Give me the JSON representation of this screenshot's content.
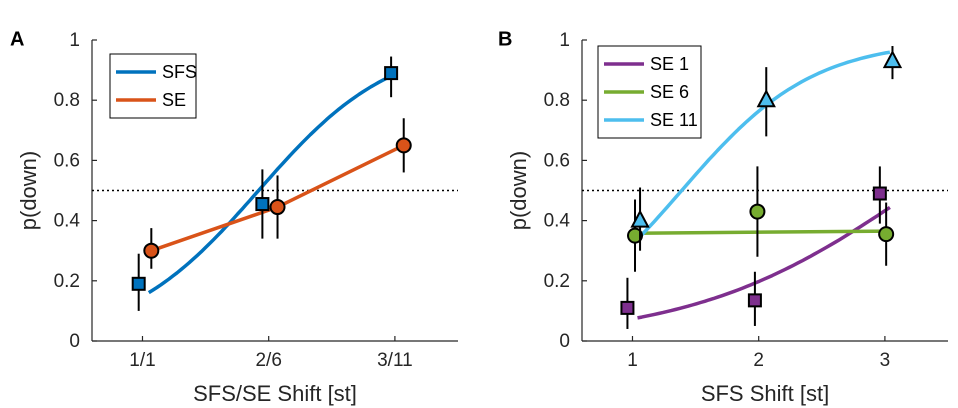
{
  "chart_data": [
    {
      "panel": "A",
      "type": "line",
      "xlabel": "SFS/SE Shift [st]",
      "ylabel": "p(down)",
      "categories": [
        "1/1",
        "2/6",
        "3/11"
      ],
      "x_ticks": [
        1,
        2,
        3
      ],
      "xlim": [
        0.6,
        3.5
      ],
      "ylim": [
        0,
        1
      ],
      "y_ticks": [
        0,
        0.2,
        0.4,
        0.6,
        0.8,
        1
      ],
      "y_tick_labels": [
        "0",
        "0.2",
        "0.4",
        "0.6",
        "0.8",
        "1"
      ],
      "reference_line": 0.5,
      "legend": "top-left",
      "series": [
        {
          "name": "SFS",
          "color": "#0072BD",
          "marker": "square",
          "x": [
            0.97,
            1.95,
            2.97
          ],
          "y": [
            0.19,
            0.455,
            0.89
          ],
          "err_low": [
            0.1,
            0.34,
            0.81
          ],
          "err_high": [
            0.29,
            0.57,
            0.945
          ],
          "fit": "logistic",
          "fit_x_range": [
            1.05,
            2.97
          ],
          "fit_params": {
            "ymin": 0.0,
            "ymax": 1.0,
            "x0": 1.92,
            "k": 1.9
          }
        },
        {
          "name": "SE",
          "color": "#D95319",
          "marker": "circle",
          "x": [
            1.07,
            2.07,
            3.07
          ],
          "y": [
            0.3,
            0.445,
            0.65
          ],
          "err_low": [
            0.24,
            0.34,
            0.56
          ],
          "err_high": [
            0.375,
            0.55,
            0.74
          ],
          "fit": "polyline"
        }
      ]
    },
    {
      "panel": "B",
      "type": "line",
      "xlabel": "SFS Shift [st]",
      "ylabel": "p(down)",
      "categories": [
        "1",
        "2",
        "3"
      ],
      "x_ticks": [
        1,
        2,
        3
      ],
      "xlim": [
        0.6,
        3.5
      ],
      "ylim": [
        0,
        1
      ],
      "y_ticks": [
        0,
        0.2,
        0.4,
        0.6,
        0.8,
        1
      ],
      "y_tick_labels": [
        "0",
        "0.2",
        "0.4",
        "0.6",
        "0.8",
        "1"
      ],
      "reference_line": 0.5,
      "legend": "top-left",
      "series": [
        {
          "name": "SE 1",
          "color": "#7E2F8E",
          "marker": "square",
          "x": [
            0.96,
            1.97,
            2.96
          ],
          "y": [
            0.11,
            0.135,
            0.49
          ],
          "err_low": [
            0.04,
            0.05,
            0.39
          ],
          "err_high": [
            0.21,
            0.23,
            0.58
          ],
          "fit": "logistic",
          "fit_x_range": [
            1.04,
            3.04
          ],
          "fit_params": {
            "ymin": 0.0,
            "ymax": 1.0,
            "x0": 3.24,
            "k": 1.13
          }
        },
        {
          "name": "SE 6",
          "color": "#77AC30",
          "marker": "circle",
          "x": [
            1.02,
            1.99,
            3.01
          ],
          "y": [
            0.35,
            0.43,
            0.355
          ],
          "err_low": [
            0.23,
            0.28,
            0.25
          ],
          "err_high": [
            0.47,
            0.58,
            0.46
          ],
          "fit": "linear",
          "fit_x_range": [
            1.02,
            3.04
          ],
          "fit_params": {
            "y_start": 0.358,
            "y_end": 0.365
          }
        },
        {
          "name": "SE 11",
          "color": "#4DBEEE",
          "marker": "triangle",
          "x": [
            1.06,
            2.06,
            3.06
          ],
          "y": [
            0.4,
            0.8,
            0.93
          ],
          "err_low": [
            0.3,
            0.68,
            0.87
          ],
          "err_high": [
            0.51,
            0.91,
            0.98
          ],
          "fit": "logistic",
          "fit_x_range": [
            1.04,
            3.04
          ],
          "fit_params": {
            "ymin": 0.0,
            "ymax": 1.0,
            "x0": 1.39,
            "k": 1.92
          }
        }
      ]
    }
  ]
}
